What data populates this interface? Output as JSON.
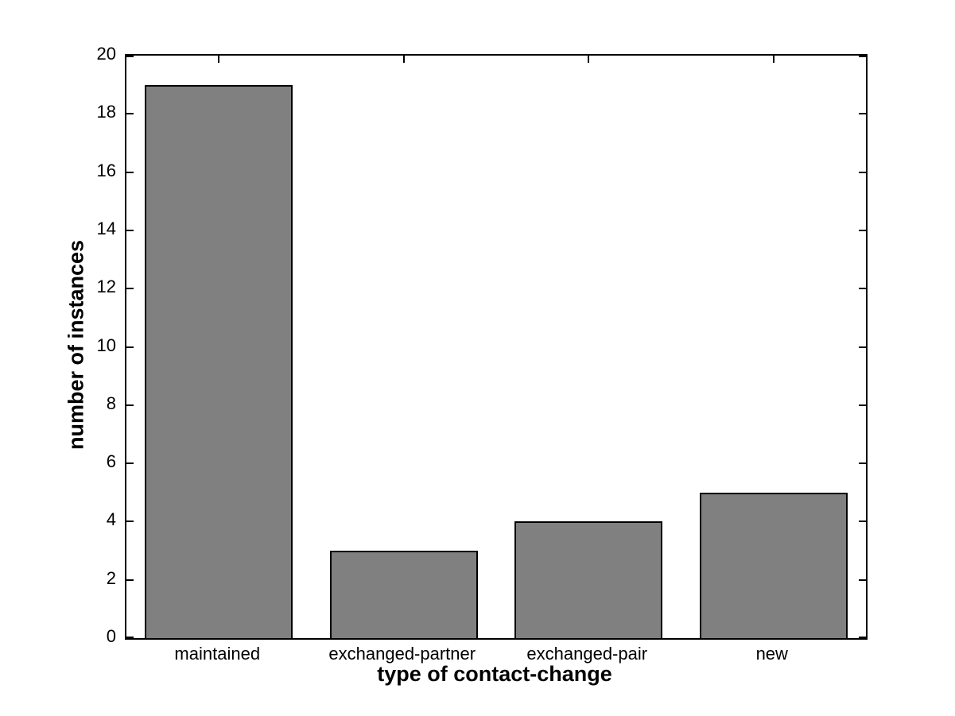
{
  "figure": {
    "background_color": "#ffffff",
    "text_color": "#000000"
  },
  "chart_data": {
    "type": "bar",
    "title": "",
    "categories": [
      "maintained",
      "exchanged-partner",
      "exchanged-pair",
      "new"
    ],
    "values": [
      19,
      3,
      4,
      5
    ],
    "xlabel": "type of contact-change",
    "ylabel": "number of instances",
    "ylim": [
      0,
      20
    ],
    "yticks": [
      0,
      2,
      4,
      6,
      8,
      10,
      12,
      14,
      16,
      18,
      20
    ],
    "bar_width_fraction": 0.8,
    "bar_color": "#808080",
    "bar_edge_color": "#000000",
    "axis_color": "#000000",
    "grid": false,
    "legend_position": "none",
    "box": true,
    "tick_direction": "in",
    "style": "matlab"
  }
}
